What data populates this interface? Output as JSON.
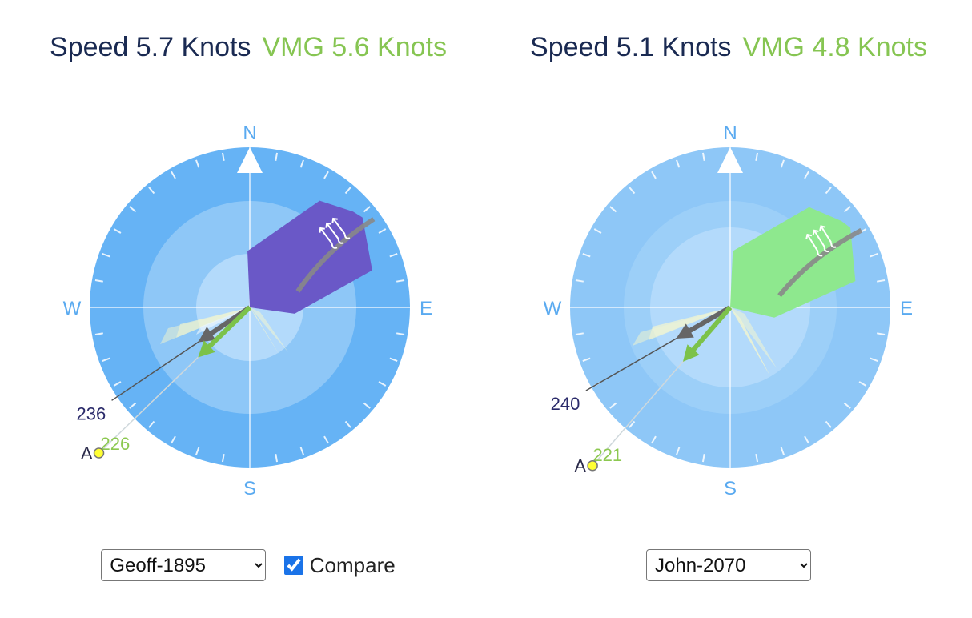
{
  "panels": [
    {
      "speed_label": "Speed 5.7 Knots",
      "vmg_label": "VMG 5.6 Knots",
      "boat_color": "#6a58c7",
      "boat_heading_deg": 53,
      "course_deg": 236,
      "vmg_deg": 226,
      "course_label": "236",
      "vmg_label_value": "226",
      "waypoint_label": "A",
      "cardinals": {
        "n": "N",
        "e": "E",
        "s": "S",
        "w": "W"
      },
      "sailor_select": {
        "value": "Geoff-1895",
        "options": [
          "Geoff-1895"
        ]
      },
      "compare": {
        "label": "Compare",
        "checked": true
      }
    },
    {
      "speed_label": "Speed 5.1 Knots",
      "vmg_label": "VMG 4.8 Knots",
      "boat_color": "#8ee88e",
      "boat_heading_deg": 58,
      "course_deg": 240,
      "vmg_deg": 221,
      "course_label": "240",
      "vmg_label_value": "221",
      "waypoint_label": "A",
      "cardinals": {
        "n": "N",
        "e": "E",
        "s": "S",
        "w": "W"
      },
      "sailor_select": {
        "value": "John-2070",
        "options": [
          "John-2070"
        ]
      }
    }
  ],
  "colors": {
    "compass_outer": "#66b3f5",
    "compass_mid": "#8ec7f7",
    "compass_inner": "#b3dafb",
    "cardinal_text": "#5aaaf0",
    "course_arrow": "#666666",
    "vmg_arrow": "#7cc24a",
    "course_text": "#2a2a6a",
    "vmg_text": "#8cc850"
  }
}
